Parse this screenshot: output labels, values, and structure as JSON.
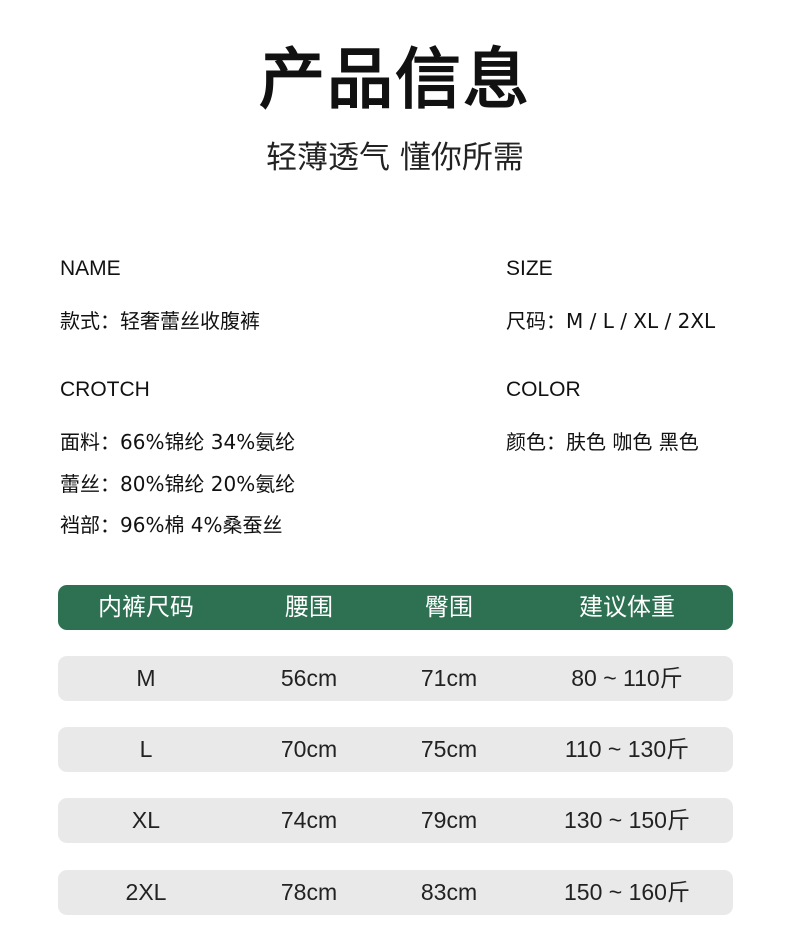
{
  "header": {
    "title": "产品信息",
    "subtitle": "轻薄透气 懂你所需"
  },
  "info": {
    "name": {
      "label": "NAME",
      "lines": [
        "款式：轻奢蕾丝收腹裤"
      ]
    },
    "size": {
      "label": "SIZE",
      "lines": [
        "尺码：M / L / XL / 2XL"
      ]
    },
    "crotch": {
      "label": "CROTCH",
      "lines": [
        "面料：66%锦纶 34%氨纶",
        "蕾丝：80%锦纶 20%氨纶",
        "裆部：96%棉 4%桑蚕丝"
      ]
    },
    "color": {
      "label": "COLOR",
      "lines": [
        "颜色：肤色 咖色 黑色"
      ]
    }
  },
  "table": {
    "header_color": "#2d7152",
    "columns": [
      "内裤尺码",
      "腰围",
      "臀围",
      "建议体重"
    ],
    "rows": [
      [
        "M",
        "56cm",
        "71cm",
        "80 ~ 110斤"
      ],
      [
        "L",
        "70cm",
        "75cm",
        "110 ~ 130斤"
      ],
      [
        "XL",
        "74cm",
        "79cm",
        "130 ~ 150斤"
      ],
      [
        "2XL",
        "78cm",
        "83cm",
        "150 ~ 160斤"
      ]
    ]
  }
}
